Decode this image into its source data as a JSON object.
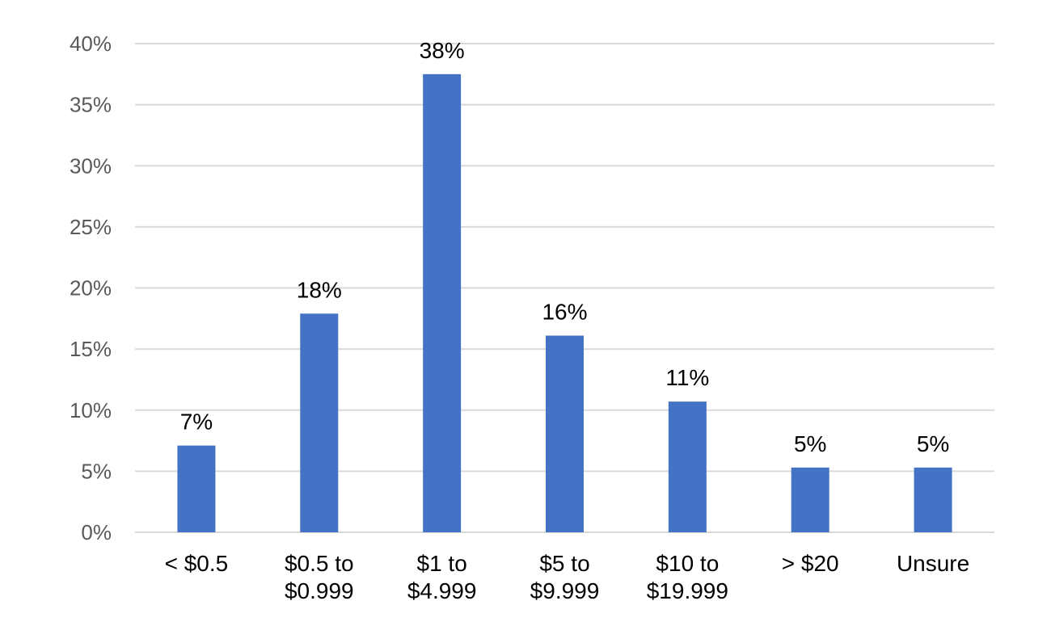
{
  "chart_data": {
    "type": "bar",
    "title": "",
    "xlabel": "",
    "ylabel": "",
    "categories": [
      [
        "< $0.5"
      ],
      [
        "$0.5 to",
        "$0.999"
      ],
      [
        "$1 to",
        "$4.999"
      ],
      [
        "$5 to",
        "$9.999"
      ],
      [
        "$10 to",
        "$19.999"
      ],
      [
        "> $20"
      ],
      [
        "Unsure"
      ]
    ],
    "values": [
      7.1,
      17.9,
      37.5,
      16.1,
      10.7,
      5.3,
      5.3
    ],
    "data_labels": [
      "7%",
      "18%",
      "38%",
      "16%",
      "11%",
      "5%",
      "5%"
    ],
    "y_ticks": [
      0,
      5,
      10,
      15,
      20,
      25,
      30,
      35,
      40
    ],
    "y_tick_labels": [
      "0%",
      "5%",
      "10%",
      "15%",
      "20%",
      "25%",
      "30%",
      "35%",
      "40%"
    ],
    "ylim": [
      0,
      40
    ],
    "grid": true,
    "legend": "none",
    "bar_color": "#4472C4"
  }
}
